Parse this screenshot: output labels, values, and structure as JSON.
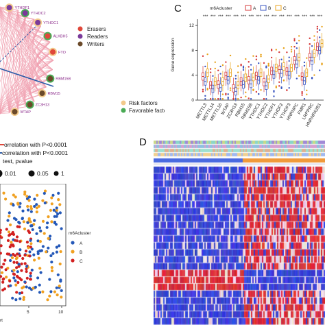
{
  "panel_c_letter": "C",
  "panel_d_letter": "D",
  "network": {
    "node_labels": [
      "YTHDF1",
      "YTHDC2",
      "YTHDC1",
      "ALKBH5",
      "FTO",
      "RBM15B",
      "RBM15",
      "ZC3H13",
      "WTAP"
    ],
    "legend_types": [
      "Erasers",
      "Readers",
      "Writers"
    ],
    "legend_factors": [
      "Risk factors",
      "Favorable factors"
    ],
    "colors": {
      "erasers": "#e0473a",
      "readers": "#7a3a9a",
      "writers": "#6b4a2a",
      "risk": "#f2c98a",
      "favorable": "#4aaa55",
      "edge_pink": "#f0a0b0",
      "edge_blue": "#2a5aa8"
    }
  },
  "correlation_legend": {
    "lines": [
      "orrelation with P<0.0001",
      "correlation with P<0.0001",
      "test, pvalue"
    ],
    "pvalue_labels": [
      "0.01",
      "0.05",
      "1"
    ]
  },
  "scatter_legend": {
    "title": "m6Acluster",
    "items": [
      "A",
      "B",
      "C"
    ],
    "colors": [
      "#2458b8",
      "#f0a020",
      "#d22020"
    ]
  },
  "scatter_axis": {
    "x_ticks": [
      "5",
      "10"
    ],
    "x_label_fragment": "rt"
  },
  "chart_data": {
    "type": "box",
    "title": "",
    "legend_title": "m6Acluster",
    "legend_items": [
      "A",
      "B",
      "C"
    ],
    "series_colors": [
      "#d63a3a",
      "#3a55c0",
      "#e8a21a"
    ],
    "ylabel": "Gene expression",
    "ylim": [
      0,
      13
    ],
    "yticks": [
      0,
      4,
      8,
      12
    ],
    "significance": "***",
    "categories": [
      "METTL3",
      "METTL14",
      "METTL16",
      "WTAP",
      "ZC3H13",
      "RBM15",
      "RBM15B",
      "YTHDC1",
      "YTHDC2",
      "YTHDF1",
      "YTHDF2",
      "YTHDF3",
      "HNRNPC",
      "FMR1",
      "LRPPRC",
      "HNRNPA2B1"
    ],
    "series": [
      {
        "name": "A",
        "medians": [
          3.8,
          2.4,
          2.5,
          3.9,
          1.9,
          3.0,
          3.2,
          3.9,
          2.9,
          4.7,
          4.9,
          4.6,
          6.4,
          3.8,
          6.9,
          8.6
        ]
      },
      {
        "name": "B",
        "medians": [
          3.0,
          1.8,
          2.0,
          3.2,
          1.4,
          2.5,
          2.6,
          3.2,
          2.3,
          4.1,
          4.3,
          4.0,
          5.8,
          3.1,
          6.3,
          8.0
        ]
      },
      {
        "name": "C",
        "medians": [
          4.4,
          3.0,
          3.0,
          4.4,
          2.4,
          3.6,
          3.7,
          4.4,
          3.4,
          5.2,
          5.4,
          5.2,
          6.9,
          4.4,
          7.5,
          9.1
        ]
      }
    ]
  }
}
